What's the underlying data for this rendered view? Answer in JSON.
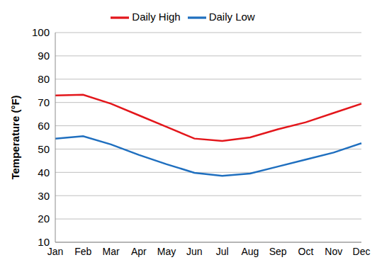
{
  "chart_data": {
    "type": "line",
    "categories": [
      "Jan",
      "Feb",
      "Mar",
      "Apr",
      "May",
      "Jun",
      "Jul",
      "Aug",
      "Sep",
      "Oct",
      "Nov",
      "Dec"
    ],
    "series": [
      {
        "name": "Daily High",
        "color": "#e3161b",
        "values": [
          73,
          73.3,
          69.5,
          64.5,
          59.5,
          54.5,
          53.5,
          55,
          58.5,
          61.5,
          65.5,
          69.5
        ]
      },
      {
        "name": "Daily Low",
        "color": "#1f6fbf",
        "values": [
          54.5,
          55.5,
          52,
          47.5,
          43.5,
          39.8,
          38.5,
          39.5,
          42.5,
          45.5,
          48.5,
          52.5
        ]
      }
    ],
    "ylabel": "Temperature (°F)",
    "ylim": [
      10,
      100
    ],
    "yticks": [
      10,
      20,
      30,
      40,
      50,
      60,
      70,
      80,
      90,
      100
    ],
    "grid": true,
    "legend": "top"
  }
}
